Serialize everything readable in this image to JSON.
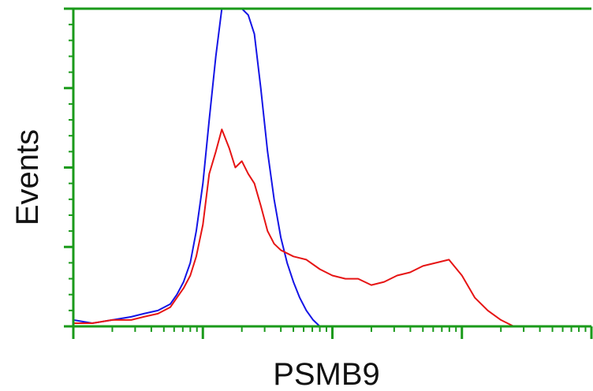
{
  "chart_data": {
    "type": "line",
    "title": "",
    "xlabel": "PSMB9",
    "ylabel": "Events",
    "x_scale": "log",
    "xlim": [
      1,
      10000
    ],
    "ylim": [
      0,
      100
    ],
    "grid": false,
    "legend": "none",
    "axis_color": "#1a9a1a",
    "series": [
      {
        "color": "#1414e6",
        "x": [
          1,
          1.4,
          2,
          2.8,
          3.5,
          4.5,
          5.6,
          6.3,
          7.1,
          8,
          8.9,
          10,
          11.2,
          12.6,
          14,
          16,
          17.8,
          20,
          22.4,
          25,
          28,
          31.6,
          35.5,
          40,
          44.7,
          50,
          56,
          63,
          71,
          80,
          90
        ],
        "y": [
          2,
          1,
          2,
          3,
          4,
          5,
          7,
          10,
          14,
          20,
          30,
          45,
          65,
          85,
          100,
          100,
          100,
          100,
          98,
          92,
          75,
          55,
          40,
          28,
          20,
          14,
          9,
          5,
          2,
          0,
          0
        ]
      },
      {
        "color": "#e61414",
        "x": [
          1,
          1.4,
          2,
          2.8,
          3.5,
          4.5,
          5.6,
          6.3,
          7.1,
          8,
          8.9,
          10,
          11.2,
          12.6,
          14,
          16,
          17.8,
          20,
          22.4,
          25,
          28,
          31.6,
          35.5,
          40,
          50,
          63,
          80,
          100,
          126,
          158,
          200,
          251,
          316,
          398,
          501,
          631,
          794,
          1000,
          1259,
          1585,
          2000,
          2512
        ],
        "y": [
          1,
          1,
          2,
          2,
          3,
          4,
          6,
          9,
          12,
          16,
          22,
          32,
          48,
          55,
          62,
          56,
          50,
          52,
          48,
          45,
          38,
          30,
          26,
          24,
          22,
          21,
          18,
          16,
          15,
          15,
          13,
          14,
          16,
          17,
          19,
          20,
          21,
          16,
          9,
          5,
          2,
          0
        ]
      }
    ]
  }
}
